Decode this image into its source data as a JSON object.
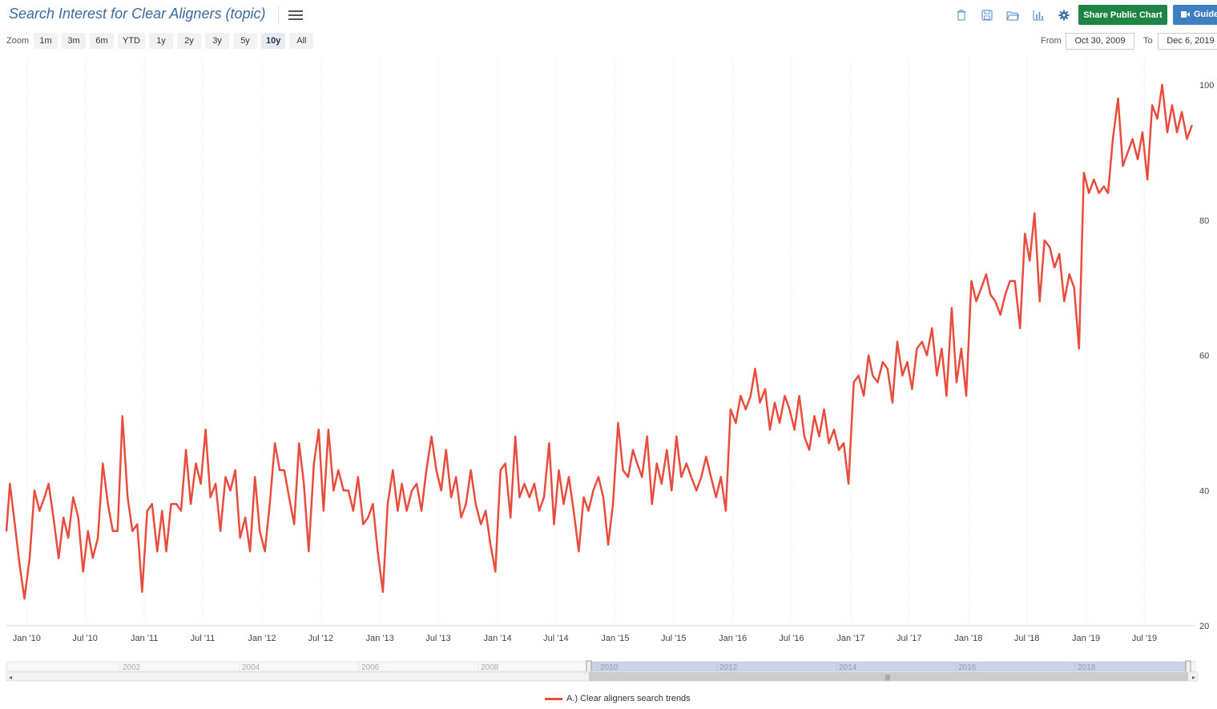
{
  "header": {
    "title": "Search Interest for Clear Aligners (topic)",
    "share_label": "Share Public Chart",
    "guide_label": "Guide"
  },
  "toolbar_icons": [
    "trash-icon",
    "save-icon",
    "folder-open-icon",
    "bar-chart-icon",
    "gear-icon"
  ],
  "zoom": {
    "label": "Zoom",
    "options": [
      "1m",
      "3m",
      "6m",
      "YTD",
      "1y",
      "2y",
      "3y",
      "5y",
      "10y",
      "All"
    ],
    "active": "10y"
  },
  "range": {
    "from_label": "From",
    "from": "Oct 30, 2009",
    "to_label": "To",
    "to": "Dec 6, 2019"
  },
  "navigator": {
    "year_labels": [
      "2002",
      "2004",
      "2006",
      "2008",
      "2010",
      "2012",
      "2014",
      "2016",
      "2018"
    ]
  },
  "colors": {
    "series": "#e84c3d",
    "share_button": "#1e8446",
    "guide_button": "#3d7fc1",
    "title": "#3b6aa0"
  },
  "chart_data": {
    "type": "line",
    "title": "",
    "xlabel": "",
    "ylabel": "",
    "x_range": [
      "2009-10-30",
      "2019-12-06"
    ],
    "ylim": [
      20,
      100
    ],
    "y_ticks": [
      20,
      40,
      60,
      80,
      100
    ],
    "x_tick_labels": [
      {
        "label": "Jan '10",
        "date": "2010-01-01"
      },
      {
        "label": "Jul '10",
        "date": "2010-07-01"
      },
      {
        "label": "Jan '11",
        "date": "2011-01-01"
      },
      {
        "label": "Jul '11",
        "date": "2011-07-01"
      },
      {
        "label": "Jan '12",
        "date": "2012-01-01"
      },
      {
        "label": "Jul '12",
        "date": "2012-07-01"
      },
      {
        "label": "Jan '13",
        "date": "2013-01-01"
      },
      {
        "label": "Jul '13",
        "date": "2013-07-01"
      },
      {
        "label": "Jan '14",
        "date": "2014-01-01"
      },
      {
        "label": "Jul '14",
        "date": "2014-07-01"
      },
      {
        "label": "Jan '15",
        "date": "2015-01-01"
      },
      {
        "label": "Jul '15",
        "date": "2015-07-01"
      },
      {
        "label": "Jan '16",
        "date": "2016-01-01"
      },
      {
        "label": "Jul '16",
        "date": "2016-07-01"
      },
      {
        "label": "Jan '17",
        "date": "2017-01-01"
      },
      {
        "label": "Jul '17",
        "date": "2017-07-01"
      },
      {
        "label": "Jan '18",
        "date": "2018-01-01"
      },
      {
        "label": "Jul '18",
        "date": "2018-07-01"
      },
      {
        "label": "Jan '19",
        "date": "2019-01-01"
      },
      {
        "label": "Jul '19",
        "date": "2019-07-01"
      }
    ],
    "grid": "vertical-dotted",
    "legend_position": "bottom-center",
    "series": [
      {
        "name": "A.) Clear aligners search trends",
        "color": "#e84c3d",
        "points": [
          [
            "2009-10-30",
            34
          ],
          [
            "2009-11-10",
            41
          ],
          [
            "2009-11-25",
            35
          ],
          [
            "2009-12-10",
            29
          ],
          [
            "2009-12-25",
            24
          ],
          [
            "2010-01-10",
            30
          ],
          [
            "2010-01-25",
            40
          ],
          [
            "2010-02-10",
            37
          ],
          [
            "2010-02-25",
            39
          ],
          [
            "2010-03-10",
            41
          ],
          [
            "2010-03-25",
            36
          ],
          [
            "2010-04-10",
            30
          ],
          [
            "2010-04-25",
            36
          ],
          [
            "2010-05-10",
            33
          ],
          [
            "2010-05-25",
            39
          ],
          [
            "2010-06-10",
            36
          ],
          [
            "2010-06-25",
            28
          ],
          [
            "2010-07-10",
            34
          ],
          [
            "2010-07-25",
            30
          ],
          [
            "2010-08-10",
            33
          ],
          [
            "2010-08-25",
            44
          ],
          [
            "2010-09-10",
            38
          ],
          [
            "2010-09-25",
            34
          ],
          [
            "2010-10-10",
            34
          ],
          [
            "2010-10-25",
            51
          ],
          [
            "2010-11-10",
            39
          ],
          [
            "2010-11-25",
            34
          ],
          [
            "2010-12-10",
            35
          ],
          [
            "2010-12-25",
            25
          ],
          [
            "2011-01-10",
            37
          ],
          [
            "2011-01-25",
            38
          ],
          [
            "2011-02-10",
            31
          ],
          [
            "2011-02-25",
            37
          ],
          [
            "2011-03-10",
            31
          ],
          [
            "2011-03-25",
            38
          ],
          [
            "2011-04-10",
            38
          ],
          [
            "2011-04-25",
            37
          ],
          [
            "2011-05-10",
            46
          ],
          [
            "2011-05-25",
            38
          ],
          [
            "2011-06-10",
            44
          ],
          [
            "2011-06-25",
            41
          ],
          [
            "2011-07-10",
            49
          ],
          [
            "2011-07-25",
            39
          ],
          [
            "2011-08-10",
            41
          ],
          [
            "2011-08-25",
            34
          ],
          [
            "2011-09-10",
            42
          ],
          [
            "2011-09-25",
            40
          ],
          [
            "2011-10-10",
            43
          ],
          [
            "2011-10-25",
            33
          ],
          [
            "2011-11-10",
            36
          ],
          [
            "2011-11-25",
            31
          ],
          [
            "2011-12-10",
            42
          ],
          [
            "2011-12-25",
            34
          ],
          [
            "2012-01-10",
            31
          ],
          [
            "2012-01-25",
            38
          ],
          [
            "2012-02-10",
            47
          ],
          [
            "2012-02-25",
            43
          ],
          [
            "2012-03-10",
            43
          ],
          [
            "2012-03-25",
            39
          ],
          [
            "2012-04-10",
            35
          ],
          [
            "2012-04-25",
            47
          ],
          [
            "2012-05-10",
            41
          ],
          [
            "2012-05-25",
            31
          ],
          [
            "2012-06-10",
            44
          ],
          [
            "2012-06-25",
            49
          ],
          [
            "2012-07-10",
            37
          ],
          [
            "2012-07-25",
            49
          ],
          [
            "2012-08-10",
            40
          ],
          [
            "2012-08-25",
            43
          ],
          [
            "2012-09-10",
            40
          ],
          [
            "2012-09-25",
            40
          ],
          [
            "2012-10-10",
            37
          ],
          [
            "2012-10-25",
            42
          ],
          [
            "2012-11-10",
            35
          ],
          [
            "2012-11-25",
            36
          ],
          [
            "2012-12-10",
            38
          ],
          [
            "2012-12-25",
            31
          ],
          [
            "2013-01-10",
            25
          ],
          [
            "2013-01-25",
            38
          ],
          [
            "2013-02-10",
            43
          ],
          [
            "2013-02-25",
            37
          ],
          [
            "2013-03-10",
            41
          ],
          [
            "2013-03-25",
            37
          ],
          [
            "2013-04-10",
            40
          ],
          [
            "2013-04-25",
            41
          ],
          [
            "2013-05-10",
            37
          ],
          [
            "2013-05-25",
            43
          ],
          [
            "2013-06-10",
            48
          ],
          [
            "2013-06-25",
            43
          ],
          [
            "2013-07-10",
            40
          ],
          [
            "2013-07-25",
            46
          ],
          [
            "2013-08-10",
            39
          ],
          [
            "2013-08-25",
            42
          ],
          [
            "2013-09-10",
            36
          ],
          [
            "2013-09-25",
            38
          ],
          [
            "2013-10-10",
            43
          ],
          [
            "2013-10-25",
            38
          ],
          [
            "2013-11-10",
            35
          ],
          [
            "2013-11-25",
            37
          ],
          [
            "2013-12-10",
            32
          ],
          [
            "2013-12-25",
            28
          ],
          [
            "2014-01-10",
            43
          ],
          [
            "2014-01-25",
            44
          ],
          [
            "2014-02-10",
            36
          ],
          [
            "2014-02-25",
            48
          ],
          [
            "2014-03-10",
            39
          ],
          [
            "2014-03-25",
            41
          ],
          [
            "2014-04-10",
            39
          ],
          [
            "2014-04-25",
            41
          ],
          [
            "2014-05-10",
            37
          ],
          [
            "2014-05-25",
            39
          ],
          [
            "2014-06-10",
            47
          ],
          [
            "2014-06-25",
            35
          ],
          [
            "2014-07-10",
            43
          ],
          [
            "2014-07-25",
            38
          ],
          [
            "2014-08-10",
            42
          ],
          [
            "2014-08-25",
            37
          ],
          [
            "2014-09-10",
            31
          ],
          [
            "2014-09-25",
            39
          ],
          [
            "2014-10-10",
            37
          ],
          [
            "2014-10-25",
            40
          ],
          [
            "2014-11-10",
            42
          ],
          [
            "2014-11-25",
            39
          ],
          [
            "2014-12-10",
            32
          ],
          [
            "2014-12-25",
            38
          ],
          [
            "2015-01-10",
            50
          ],
          [
            "2015-01-25",
            43
          ],
          [
            "2015-02-10",
            42
          ],
          [
            "2015-02-25",
            46
          ],
          [
            "2015-03-10",
            44
          ],
          [
            "2015-03-25",
            42
          ],
          [
            "2015-04-10",
            48
          ],
          [
            "2015-04-25",
            38
          ],
          [
            "2015-05-10",
            44
          ],
          [
            "2015-05-25",
            41
          ],
          [
            "2015-06-10",
            46
          ],
          [
            "2015-06-25",
            40
          ],
          [
            "2015-07-10",
            48
          ],
          [
            "2015-07-25",
            42
          ],
          [
            "2015-08-10",
            44
          ],
          [
            "2015-08-25",
            42
          ],
          [
            "2015-09-10",
            40
          ],
          [
            "2015-09-25",
            42
          ],
          [
            "2015-10-10",
            45
          ],
          [
            "2015-10-25",
            42
          ],
          [
            "2015-11-10",
            39
          ],
          [
            "2015-11-25",
            42
          ],
          [
            "2015-12-10",
            37
          ],
          [
            "2015-12-25",
            52
          ],
          [
            "2016-01-10",
            50
          ],
          [
            "2016-01-25",
            54
          ],
          [
            "2016-02-10",
            52
          ],
          [
            "2016-02-25",
            54
          ],
          [
            "2016-03-10",
            58
          ],
          [
            "2016-03-25",
            53
          ],
          [
            "2016-04-10",
            55
          ],
          [
            "2016-04-25",
            49
          ],
          [
            "2016-05-10",
            53
          ],
          [
            "2016-05-25",
            50
          ],
          [
            "2016-06-10",
            54
          ],
          [
            "2016-06-25",
            52
          ],
          [
            "2016-07-10",
            49
          ],
          [
            "2016-07-25",
            54
          ],
          [
            "2016-08-10",
            48
          ],
          [
            "2016-08-25",
            46
          ],
          [
            "2016-09-10",
            51
          ],
          [
            "2016-09-25",
            48
          ],
          [
            "2016-10-10",
            52
          ],
          [
            "2016-10-25",
            47
          ],
          [
            "2016-11-10",
            49
          ],
          [
            "2016-11-25",
            46
          ],
          [
            "2016-12-10",
            47
          ],
          [
            "2016-12-25",
            41
          ],
          [
            "2017-01-10",
            56
          ],
          [
            "2017-01-25",
            57
          ],
          [
            "2017-02-10",
            54
          ],
          [
            "2017-02-25",
            60
          ],
          [
            "2017-03-10",
            57
          ],
          [
            "2017-03-25",
            56
          ],
          [
            "2017-04-10",
            59
          ],
          [
            "2017-04-25",
            58
          ],
          [
            "2017-05-10",
            53
          ],
          [
            "2017-05-25",
            62
          ],
          [
            "2017-06-10",
            57
          ],
          [
            "2017-06-25",
            59
          ],
          [
            "2017-07-10",
            55
          ],
          [
            "2017-07-25",
            61
          ],
          [
            "2017-08-10",
            62
          ],
          [
            "2017-08-25",
            60
          ],
          [
            "2017-09-10",
            64
          ],
          [
            "2017-09-25",
            57
          ],
          [
            "2017-10-10",
            61
          ],
          [
            "2017-10-25",
            54
          ],
          [
            "2017-11-10",
            67
          ],
          [
            "2017-11-25",
            56
          ],
          [
            "2017-12-10",
            61
          ],
          [
            "2017-12-25",
            54
          ],
          [
            "2018-01-10",
            71
          ],
          [
            "2018-01-25",
            68
          ],
          [
            "2018-02-10",
            70
          ],
          [
            "2018-02-25",
            72
          ],
          [
            "2018-03-10",
            69
          ],
          [
            "2018-03-25",
            68
          ],
          [
            "2018-04-10",
            66
          ],
          [
            "2018-04-25",
            69
          ],
          [
            "2018-05-10",
            71
          ],
          [
            "2018-05-25",
            71
          ],
          [
            "2018-06-10",
            64
          ],
          [
            "2018-06-25",
            78
          ],
          [
            "2018-07-10",
            74
          ],
          [
            "2018-07-25",
            81
          ],
          [
            "2018-08-10",
            68
          ],
          [
            "2018-08-25",
            77
          ],
          [
            "2018-09-10",
            76
          ],
          [
            "2018-09-25",
            73
          ],
          [
            "2018-10-10",
            75
          ],
          [
            "2018-10-25",
            68
          ],
          [
            "2018-11-10",
            72
          ],
          [
            "2018-11-25",
            70
          ],
          [
            "2018-12-10",
            61
          ],
          [
            "2018-12-25",
            87
          ],
          [
            "2019-01-10",
            84
          ],
          [
            "2019-01-25",
            86
          ],
          [
            "2019-02-10",
            84
          ],
          [
            "2019-02-25",
            85
          ],
          [
            "2019-03-10",
            84
          ],
          [
            "2019-03-25",
            92
          ],
          [
            "2019-04-10",
            98
          ],
          [
            "2019-04-25",
            88
          ],
          [
            "2019-05-10",
            90
          ],
          [
            "2019-05-25",
            92
          ],
          [
            "2019-06-10",
            89
          ],
          [
            "2019-06-25",
            93
          ],
          [
            "2019-07-10",
            86
          ],
          [
            "2019-07-25",
            97
          ],
          [
            "2019-08-10",
            95
          ],
          [
            "2019-08-25",
            100
          ],
          [
            "2019-09-10",
            93
          ],
          [
            "2019-09-25",
            97
          ],
          [
            "2019-10-10",
            93
          ],
          [
            "2019-10-25",
            96
          ],
          [
            "2019-11-10",
            92
          ],
          [
            "2019-11-25",
            94
          ]
        ]
      }
    ]
  }
}
